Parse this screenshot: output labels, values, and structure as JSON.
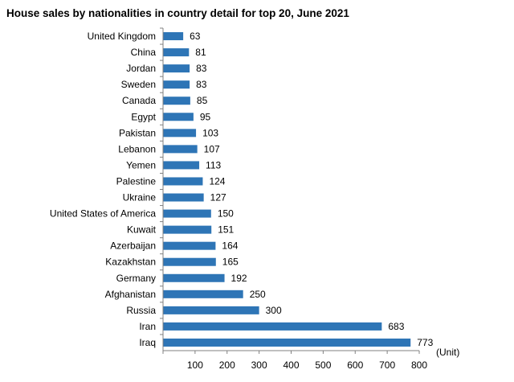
{
  "chart_data": {
    "type": "bar",
    "orientation": "horizontal",
    "title": "House sales by nationalities in country detail for top 20, June 2021",
    "categories": [
      "United Kingdom",
      "China",
      "Jordan",
      "Sweden",
      "Canada",
      "Egypt",
      "Pakistan",
      "Lebanon",
      "Yemen",
      "Palestine",
      "Ukraine",
      "United States of America",
      "Kuwait",
      "Azerbaijan",
      "Kazakhstan",
      "Germany",
      "Afghanistan",
      "Russia",
      "Iran",
      "Iraq"
    ],
    "values": [
      63,
      81,
      83,
      83,
      85,
      95,
      103,
      107,
      113,
      124,
      127,
      150,
      151,
      164,
      165,
      192,
      250,
      300,
      683,
      773
    ],
    "value_labels": [
      "63",
      "81",
      "83",
      "83",
      "85",
      "95",
      "103",
      "107",
      "113",
      "124",
      "127",
      "150",
      "151",
      "164",
      "165",
      "192",
      "250",
      "300",
      "683",
      "773"
    ],
    "xlim": [
      0,
      800
    ],
    "x_ticks": [
      "100",
      "200",
      "300",
      "400",
      "500",
      "600",
      "700",
      "800"
    ],
    "unit_label": "(Unit)",
    "grid": false,
    "bar_color": "#2E75B6"
  }
}
